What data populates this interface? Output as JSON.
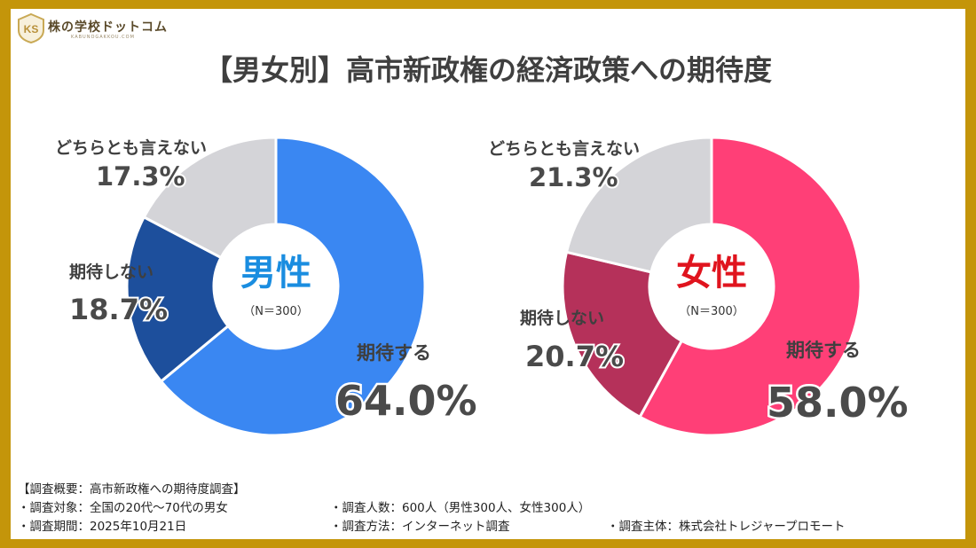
{
  "brand": {
    "name": "株の学校ドットコム",
    "sub": "KABUNOGAKKOU.COM",
    "colors": {
      "frame": "#c4950a"
    }
  },
  "title": "【男女別】高市新政権の経済政策への期待度",
  "chart_data": [
    {
      "type": "pie",
      "title": "男性",
      "subtitle": "（N＝300）",
      "title_color": "#1a8de0",
      "categories": [
        "期待する",
        "期待しない",
        "どちらとも言えない"
      ],
      "values": [
        64.0,
        18.7,
        17.3
      ],
      "value_labels": [
        "64.0%",
        "18.7%",
        "17.3%"
      ],
      "colors": [
        "#3a87f2",
        "#1d4f9c",
        "#d4d4d8"
      ]
    },
    {
      "type": "pie",
      "title": "女性",
      "subtitle": "（N＝300）",
      "title_color": "#e0141e",
      "categories": [
        "期待する",
        "期待しない",
        "どちらとも言えない"
      ],
      "values": [
        58.0,
        20.7,
        21.3
      ],
      "value_labels": [
        "58.0%",
        "20.7%",
        "21.3%"
      ],
      "colors": [
        "#ff3f77",
        "#b5315a",
        "#d4d4d8"
      ]
    }
  ],
  "footer": {
    "heading": "【調査概要：高市新政権への期待度調査】",
    "target": "・調査対象：全国の20代～70代の男女",
    "count": "・調査人数：600人（男性300人、女性300人）",
    "period": "・調査期間：2025年10月21日",
    "method": "・調査方法：インターネット調査",
    "sponsor": "・調査主体：株式会社トレジャープロモート"
  }
}
